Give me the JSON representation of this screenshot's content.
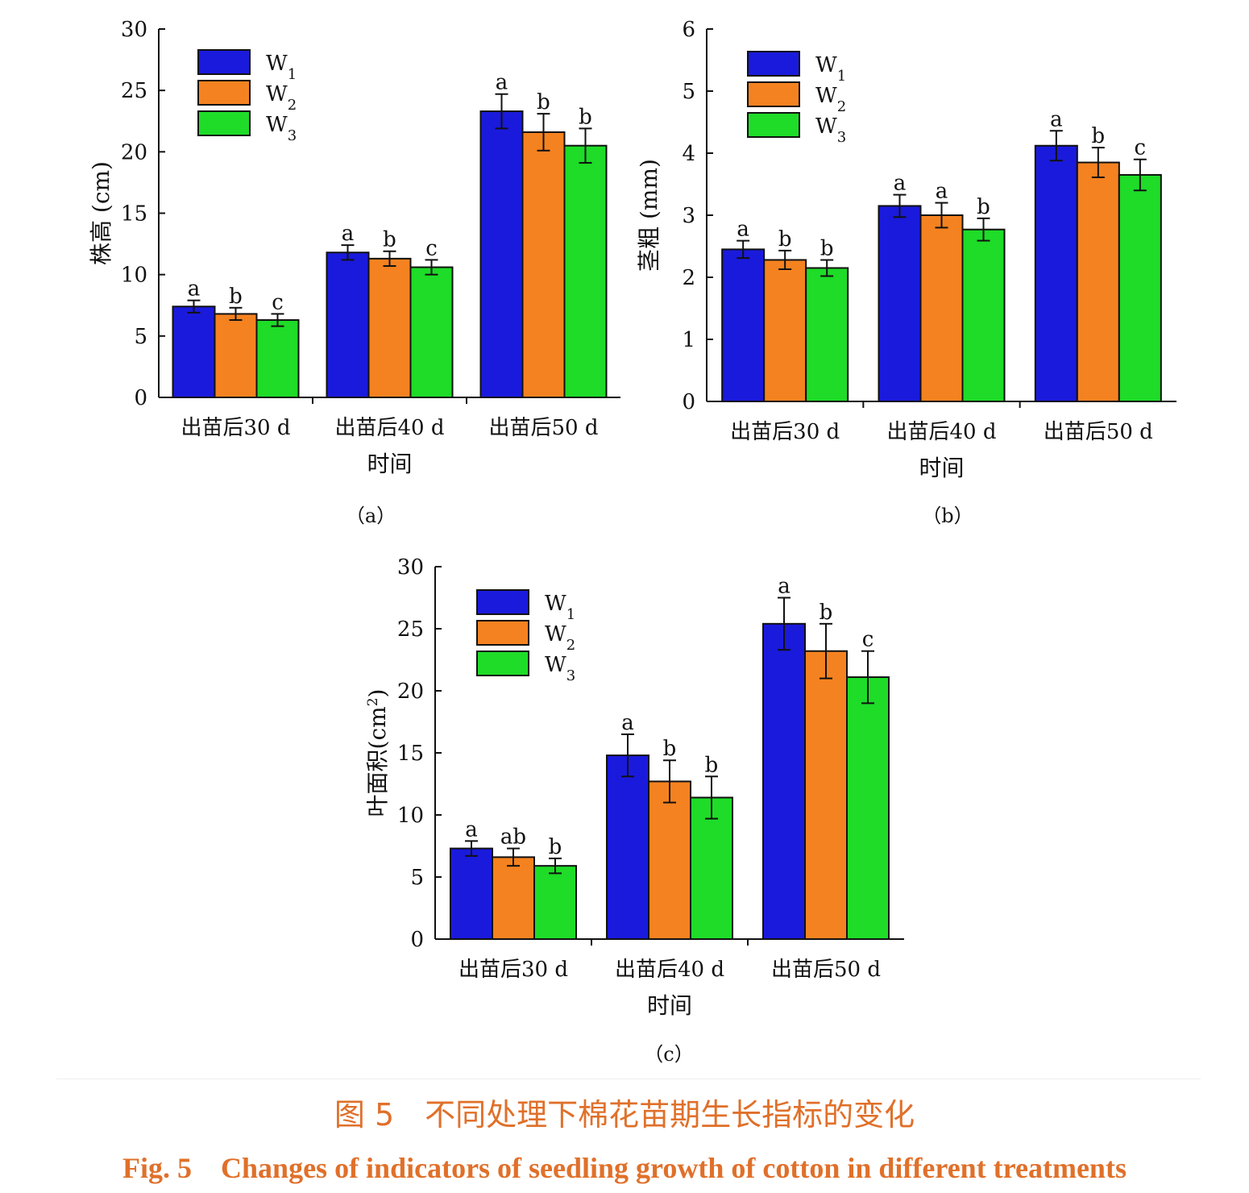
{
  "figure": {
    "caption_cn": "图 5　不同处理下棉花苗期生长指标的变化",
    "caption_en": "Fig. 5　Changes of indicators of seedling growth of cotton in different treatments"
  },
  "colors": {
    "W1": "#1a1adc",
    "W2": "#f58220",
    "W3": "#1edc28"
  },
  "chart_data": [
    {
      "type": "bar",
      "panel": "（a）",
      "xlabel": "时间",
      "ylabel": "株高 (cm)",
      "categories": [
        "出苗后30 d",
        "出苗后40 d",
        "出苗后50 d"
      ],
      "ylim": [
        0,
        30
      ],
      "yticks": [
        0,
        5,
        10,
        15,
        20,
        25,
        30
      ],
      "legend_position": "top-left",
      "series": [
        {
          "name": "W",
          "sub": "1",
          "values": [
            7.4,
            11.8,
            23.3
          ],
          "errors": [
            0.5,
            0.6,
            1.4
          ],
          "labels": [
            "a",
            "a",
            "a"
          ]
        },
        {
          "name": "W",
          "sub": "2",
          "values": [
            6.8,
            11.3,
            21.6
          ],
          "errors": [
            0.5,
            0.6,
            1.5
          ],
          "labels": [
            "b",
            "b",
            "b"
          ]
        },
        {
          "name": "W",
          "sub": "3",
          "values": [
            6.3,
            10.6,
            20.5
          ],
          "errors": [
            0.5,
            0.6,
            1.4
          ],
          "labels": [
            "c",
            "c",
            "b"
          ]
        }
      ]
    },
    {
      "type": "bar",
      "panel": "（b）",
      "xlabel": "时间",
      "ylabel": "茎粗 (mm)",
      "categories": [
        "出苗后30 d",
        "出苗后40 d",
        "出苗后50 d"
      ],
      "ylim": [
        0,
        6
      ],
      "yticks": [
        0,
        1,
        2,
        3,
        4,
        5,
        6
      ],
      "legend_position": "top-left",
      "series": [
        {
          "name": "W",
          "sub": "1",
          "values": [
            2.45,
            3.15,
            4.12
          ],
          "errors": [
            0.14,
            0.18,
            0.24
          ],
          "labels": [
            "a",
            "a",
            "a"
          ]
        },
        {
          "name": "W",
          "sub": "2",
          "values": [
            2.28,
            3.0,
            3.85
          ],
          "errors": [
            0.15,
            0.2,
            0.24
          ],
          "labels": [
            "b",
            "a",
            "b"
          ]
        },
        {
          "name": "W",
          "sub": "3",
          "values": [
            2.15,
            2.77,
            3.65
          ],
          "errors": [
            0.13,
            0.18,
            0.25
          ],
          "labels": [
            "b",
            "b",
            "c"
          ]
        }
      ]
    },
    {
      "type": "bar",
      "panel": "（c）",
      "xlabel": "时间",
      "ylabel": "叶面积(cm",
      "ylabel_sup": "2",
      "ylabel_end": ")",
      "categories": [
        "出苗后30 d",
        "出苗后40 d",
        "出苗后50 d"
      ],
      "ylim": [
        0,
        30
      ],
      "yticks": [
        0,
        5,
        10,
        15,
        20,
        25,
        30
      ],
      "legend_position": "top-left",
      "series": [
        {
          "name": "W",
          "sub": "1",
          "values": [
            7.3,
            14.8,
            25.4
          ],
          "errors": [
            0.6,
            1.7,
            2.1
          ],
          "labels": [
            "a",
            "a",
            "a"
          ]
        },
        {
          "name": "W",
          "sub": "2",
          "values": [
            6.6,
            12.7,
            23.2
          ],
          "errors": [
            0.7,
            1.7,
            2.2
          ],
          "labels": [
            "ab",
            "b",
            "b"
          ]
        },
        {
          "name": "W",
          "sub": "3",
          "values": [
            5.9,
            11.4,
            21.1
          ],
          "errors": [
            0.6,
            1.7,
            2.1
          ],
          "labels": [
            "b",
            "b",
            "c"
          ]
        }
      ]
    }
  ]
}
